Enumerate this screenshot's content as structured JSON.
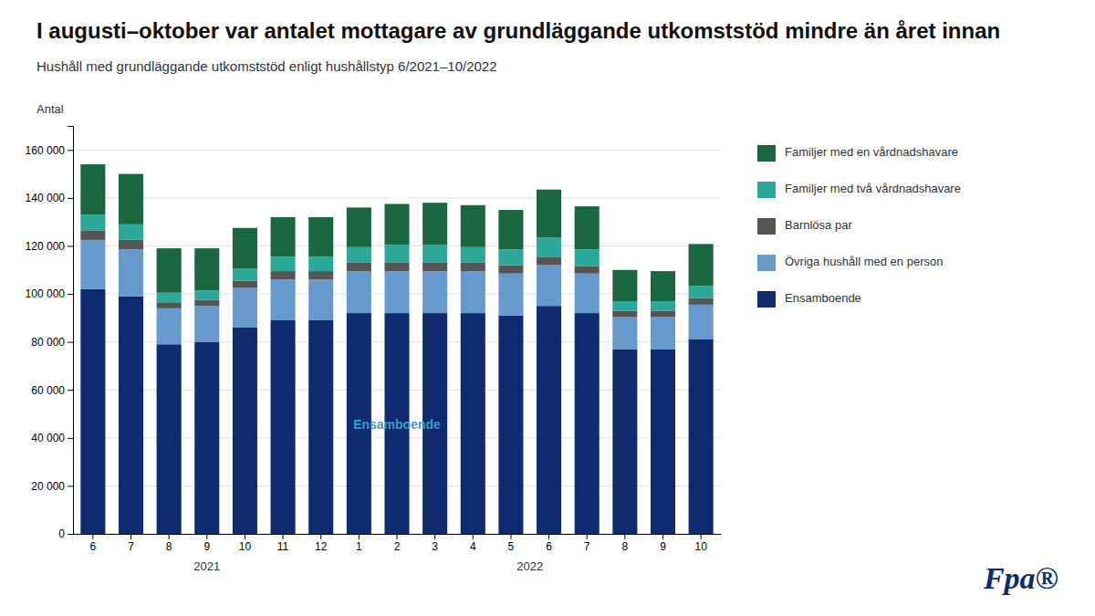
{
  "chart_data": {
    "type": "bar",
    "stacked": true,
    "grid": true,
    "title": "I augusti–oktober var antalet mottagare av grundläggande utkomststöd mindre än året innan",
    "subtitle": "Hushåll med grundläggande utkomststöd enligt hushållstyp 6/2021–10/2022",
    "ylabel": "Antal",
    "categories": [
      "6",
      "7",
      "8",
      "9",
      "10",
      "11",
      "12",
      "1",
      "2",
      "3",
      "4",
      "5",
      "6",
      "7",
      "8",
      "9",
      "10"
    ],
    "groups": [
      {
        "label": "2021",
        "start": 0,
        "end": 6
      },
      {
        "label": "2022",
        "start": 7,
        "end": 16
      }
    ],
    "ylim": [
      0,
      170000
    ],
    "yticks": [
      0,
      {
        "value": 20000,
        "label": "20 000"
      },
      {
        "value": 40000,
        "label": "40 000"
      },
      {
        "value": 60000,
        "label": "60 000"
      },
      {
        "value": 80000,
        "label": "80 000"
      },
      {
        "value": 100000,
        "label": "100 000"
      },
      {
        "value": 120000,
        "label": "120 000"
      },
      {
        "value": 140000,
        "label": "140 000"
      },
      {
        "value": 160000,
        "label": "160 000"
      }
    ],
    "series": [
      {
        "name": "Ensamboende",
        "color": "#0d2b6e",
        "values": [
          102000,
          99000,
          79000,
          80000,
          86000,
          89000,
          89000,
          92000,
          92000,
          92000,
          92000,
          91000,
          95000,
          92000,
          77000,
          77000,
          81000
        ]
      },
      {
        "name": "Övriga hushåll med en person",
        "color": "#6699cc",
        "values": [
          20500,
          19500,
          15000,
          15000,
          16500,
          17000,
          17000,
          17500,
          17500,
          17500,
          17500,
          17500,
          17000,
          16500,
          13500,
          13500,
          14500
        ]
      },
      {
        "name": "Barnlösa par",
        "color": "#555555",
        "values": [
          4000,
          4000,
          2500,
          2500,
          3000,
          3500,
          3500,
          3500,
          3500,
          3500,
          3500,
          3500,
          3500,
          3000,
          2500,
          2500,
          2800
        ]
      },
      {
        "name": "Familjer med två vårdnadshavare",
        "color": "#2ba89a",
        "values": [
          6500,
          6500,
          4000,
          4000,
          5000,
          6000,
          6000,
          6500,
          7500,
          7500,
          6500,
          6500,
          8000,
          7000,
          4000,
          4000,
          5000
        ]
      },
      {
        "name": "Familjer med en vårdnadshavare",
        "color": "#1a6641",
        "values": [
          21000,
          21000,
          18500,
          17500,
          17000,
          16500,
          16500,
          16500,
          17000,
          17500,
          17500,
          16500,
          20000,
          18000,
          13000,
          12500,
          17500
        ]
      }
    ],
    "annotations": [
      {
        "text": "Ensamboende",
        "x": 8,
        "y": 45000,
        "color": "#3a9bd5"
      }
    ],
    "logo": "Fpa®"
  }
}
